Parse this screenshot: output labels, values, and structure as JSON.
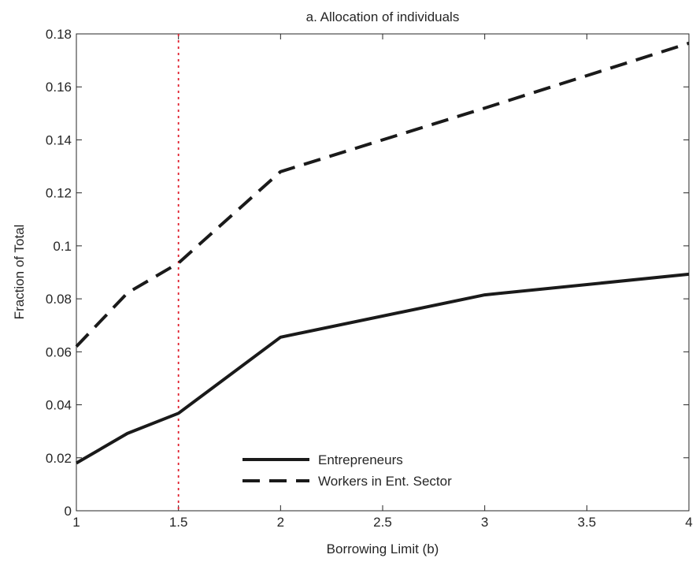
{
  "chart_data": {
    "type": "line",
    "title": "a. Allocation of individuals",
    "xlabel": "Borrowing Limit (b)",
    "ylabel": "Fraction of Total",
    "xlim": [
      1,
      4
    ],
    "ylim": [
      0,
      0.18
    ],
    "x_ticks": [
      "1",
      "1.5",
      "2",
      "2.5",
      "3",
      "3.5",
      "4"
    ],
    "y_ticks": [
      "0",
      "0.02",
      "0.04",
      "0.06",
      "0.08",
      "0.1",
      "0.12",
      "0.14",
      "0.16",
      "0.18"
    ],
    "grid": false,
    "legend_position": "bottom-center",
    "reference_line": {
      "orientation": "vertical",
      "x": 1.5,
      "color": "#e0202e",
      "style": "dotted"
    },
    "series": [
      {
        "name": "Entrepreneurs",
        "style": "solid",
        "color": "#1a1a1a",
        "x": [
          1,
          1.25,
          1.5,
          2,
          3,
          4
        ],
        "values": [
          0.018,
          0.0292,
          0.0368,
          0.0655,
          0.0815,
          0.0893
        ]
      },
      {
        "name": "Workers in Ent. Sector",
        "style": "dashed",
        "color": "#1a1a1a",
        "x": [
          1,
          1.25,
          1.5,
          2,
          3,
          4
        ],
        "values": [
          0.062,
          0.0822,
          0.0935,
          0.128,
          0.152,
          0.1765
        ]
      }
    ]
  }
}
